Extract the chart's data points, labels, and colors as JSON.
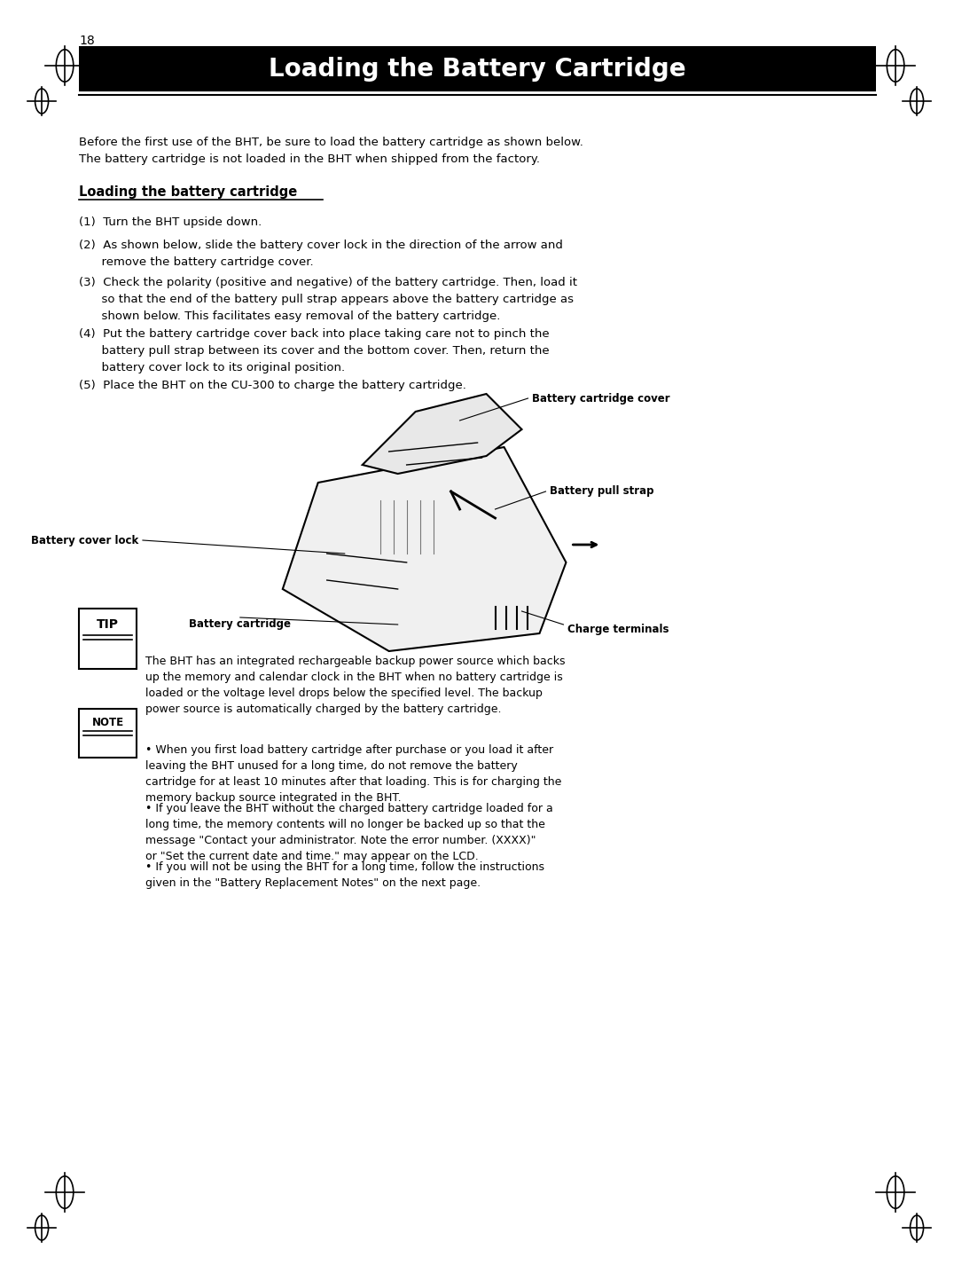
{
  "page_number": "18",
  "title": "Loading the Battery Cartridge",
  "title_bg": "#000000",
  "title_color": "#ffffff",
  "title_fontsize": 20,
  "bg_color": "#ffffff",
  "intro_text": "Before the first use of the BHT, be sure to load the battery cartridge as shown below.\nThe battery cartridge is not loaded in the BHT when shipped from the factory.",
  "section_heading": "Loading the battery cartridge",
  "steps": [
    "(1)  Turn the BHT upside down.",
    "(2)  As shown below, slide the battery cover lock in the direction of the arrow and\n      remove the battery cartridge cover.",
    "(3)  Check the polarity (positive and negative) of the battery cartridge. Then, load it\n      so that the end of the battery pull strap appears above the battery cartridge as\n      shown below. This facilitates easy removal of the battery cartridge.",
    "(4)  Put the battery cartridge cover back into place taking care not to pinch the\n      battery pull strap between its cover and the bottom cover. Then, return the\n      battery cover lock to its original position.",
    "(5)  Place the BHT on the CU-300 to charge the battery cartridge."
  ],
  "tip_text": "The BHT has an integrated rechargeable backup power source which backs\nup the memory and calendar clock in the BHT when no battery cartridge is\nloaded or the voltage level drops below the specified level. The backup\npower source is automatically charged by the battery cartridge.",
  "note_bullets": [
    "When you first load battery cartridge after purchase or you load it after\nleaving the BHT unused for a long time, do not remove the battery\ncartridge for at least 10 minutes after that loading. This is for charging the\nmemory backup source integrated in the BHT.",
    "If you leave the BHT without the charged battery cartridge loaded for a\nlong time, the memory contents will no longer be backed up so that the\nmessage \"Contact your administrator. Note the error number. (XXXX)\"\nor \"Set the current date and time.\" may appear on the LCD.",
    "If you will not be using the BHT for a long time, follow the instructions\ngiven in the \"Battery Replacement Notes\" on the next page."
  ],
  "diagram_labels": {
    "battery_cartridge_cover": "Battery cartridge cover",
    "battery_pull_strap": "Battery pull strap",
    "battery_cover_lock": "Battery cover lock",
    "battery_cartridge": "Battery cartridge",
    "charge_terminals": "Charge terminals"
  },
  "font_size_body": 9.5,
  "font_size_section": 10.5,
  "font_family": "DejaVu Sans"
}
